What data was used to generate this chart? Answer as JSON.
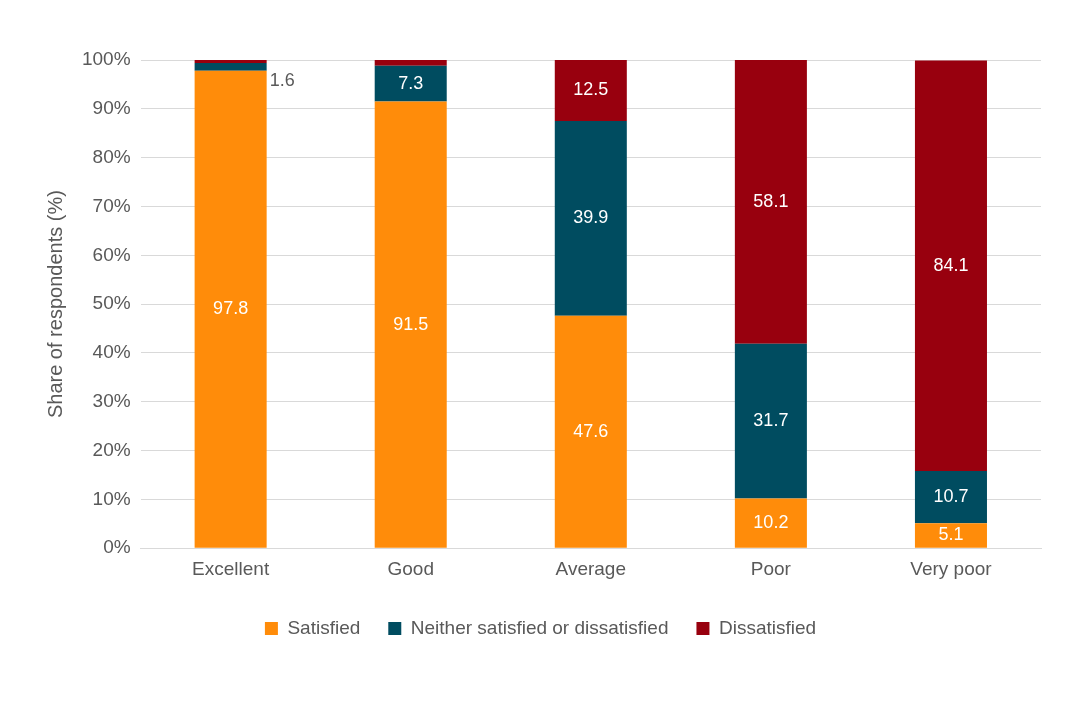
{
  "chart_data": {
    "type": "bar",
    "stacked": true,
    "ylabel": "Share of respondents (%)",
    "categories": [
      "Excellent",
      "Good",
      "Average",
      "Poor",
      "Very poor"
    ],
    "series": [
      {
        "name": "Satisfied",
        "color": "#ff8c0a",
        "values": [
          97.8,
          91.5,
          47.6,
          10.2,
          5.1
        ],
        "value_labels": [
          "97.8",
          "91.5",
          "47.6",
          "10.2",
          "5.1"
        ]
      },
      {
        "name": "Neither satisfied or dissatisfied",
        "color": "#004c60",
        "values": [
          1.6,
          7.3,
          39.9,
          31.7,
          10.7
        ],
        "value_labels": [
          "1.6",
          "7.3",
          "39.9",
          "31.7",
          "10.7"
        ]
      },
      {
        "name": "Dissatisfied",
        "color": "#98000e",
        "values": [
          0.6,
          1.2,
          12.5,
          58.1,
          84.1
        ],
        "value_labels": [
          null,
          null,
          "12.5",
          "58.1",
          "84.1"
        ]
      }
    ],
    "ylim": [
      0,
      100
    ],
    "yticks": [
      {
        "value": 0,
        "label": "0%"
      },
      {
        "value": 10,
        "label": "10%"
      },
      {
        "value": 20,
        "label": "20%"
      },
      {
        "value": 30,
        "label": "30%"
      },
      {
        "value": 40,
        "label": "40%"
      },
      {
        "value": 50,
        "label": "50%"
      },
      {
        "value": 60,
        "label": "60%"
      },
      {
        "value": 70,
        "label": "70%"
      },
      {
        "value": 80,
        "label": "80%"
      },
      {
        "value": 90,
        "label": "90%"
      },
      {
        "value": 100,
        "label": "100%"
      }
    ],
    "grid": "y",
    "legend": "bottom"
  }
}
